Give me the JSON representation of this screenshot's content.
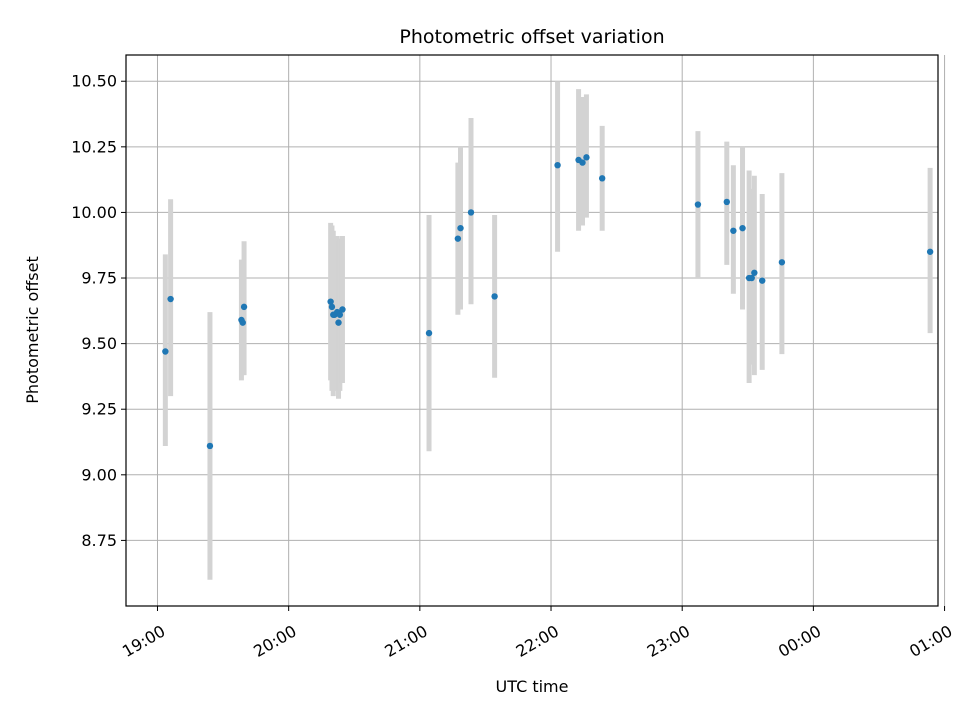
{
  "chart_data": {
    "type": "scatter",
    "title": "Photometric offset variation",
    "xlabel": "UTC time",
    "ylabel": "Photometric offset",
    "x_unit": "hours since 19:00 UTC",
    "xlim": [
      -0.24,
      5.95
    ],
    "ylim": [
      8.5,
      10.6
    ],
    "grid": true,
    "x_ticks": [
      {
        "value": 0,
        "label": "19:00"
      },
      {
        "value": 1,
        "label": "20:00"
      },
      {
        "value": 2,
        "label": "21:00"
      },
      {
        "value": 3,
        "label": "22:00"
      },
      {
        "value": 4,
        "label": "23:00"
      },
      {
        "value": 5,
        "label": "00:00"
      },
      {
        "value": 6,
        "label": "01:00"
      }
    ],
    "y_ticks": [
      {
        "value": 8.75,
        "label": "8.75"
      },
      {
        "value": 9.0,
        "label": "9.00"
      },
      {
        "value": 9.25,
        "label": "9.25"
      },
      {
        "value": 9.5,
        "label": "9.50"
      },
      {
        "value": 9.75,
        "label": "9.75"
      },
      {
        "value": 10.0,
        "label": "10.00"
      },
      {
        "value": 10.25,
        "label": "10.25"
      },
      {
        "value": 10.5,
        "label": "10.50"
      }
    ],
    "marker_color": "#1f77b4",
    "errorbar_color": "#d3d3d3",
    "points": [
      {
        "x": 0.06,
        "y": 9.47,
        "ylo": 9.11,
        "yhi": 9.84
      },
      {
        "x": 0.1,
        "y": 9.67,
        "ylo": 9.3,
        "yhi": 10.05
      },
      {
        "x": 0.4,
        "y": 9.11,
        "ylo": 8.6,
        "yhi": 9.62
      },
      {
        "x": 0.64,
        "y": 9.59,
        "ylo": 9.36,
        "yhi": 9.82
      },
      {
        "x": 0.65,
        "y": 9.58,
        "ylo": 9.38,
        "yhi": 9.77
      },
      {
        "x": 0.66,
        "y": 9.64,
        "ylo": 9.38,
        "yhi": 9.89
      },
      {
        "x": 1.32,
        "y": 9.66,
        "ylo": 9.36,
        "yhi": 9.96
      },
      {
        "x": 1.33,
        "y": 9.64,
        "ylo": 9.32,
        "yhi": 9.95
      },
      {
        "x": 1.34,
        "y": 9.61,
        "ylo": 9.3,
        "yhi": 9.93
      },
      {
        "x": 1.35,
        "y": 9.61,
        "ylo": 9.33,
        "yhi": 9.9
      },
      {
        "x": 1.37,
        "y": 9.62,
        "ylo": 9.32,
        "yhi": 9.91
      },
      {
        "x": 1.38,
        "y": 9.58,
        "ylo": 9.29,
        "yhi": 9.89
      },
      {
        "x": 1.39,
        "y": 9.61,
        "ylo": 9.32,
        "yhi": 9.9
      },
      {
        "x": 1.41,
        "y": 9.63,
        "ylo": 9.35,
        "yhi": 9.91
      },
      {
        "x": 2.07,
        "y": 9.54,
        "ylo": 9.09,
        "yhi": 9.99
      },
      {
        "x": 2.29,
        "y": 9.9,
        "ylo": 9.61,
        "yhi": 10.19
      },
      {
        "x": 2.31,
        "y": 9.94,
        "ylo": 9.63,
        "yhi": 10.25
      },
      {
        "x": 2.39,
        "y": 10.0,
        "ylo": 9.65,
        "yhi": 10.36
      },
      {
        "x": 2.57,
        "y": 9.68,
        "ylo": 9.37,
        "yhi": 9.99
      },
      {
        "x": 3.05,
        "y": 10.18,
        "ylo": 9.85,
        "yhi": 10.5
      },
      {
        "x": 3.21,
        "y": 10.2,
        "ylo": 9.93,
        "yhi": 10.47
      },
      {
        "x": 3.24,
        "y": 10.19,
        "ylo": 9.95,
        "yhi": 10.44
      },
      {
        "x": 3.27,
        "y": 10.21,
        "ylo": 9.98,
        "yhi": 10.45
      },
      {
        "x": 3.39,
        "y": 10.13,
        "ylo": 9.93,
        "yhi": 10.33
      },
      {
        "x": 4.12,
        "y": 10.03,
        "ylo": 9.75,
        "yhi": 10.31
      },
      {
        "x": 4.34,
        "y": 10.04,
        "ylo": 9.8,
        "yhi": 10.27
      },
      {
        "x": 4.39,
        "y": 9.93,
        "ylo": 9.69,
        "yhi": 10.18
      },
      {
        "x": 4.46,
        "y": 9.94,
        "ylo": 9.63,
        "yhi": 10.25
      },
      {
        "x": 4.51,
        "y": 9.75,
        "ylo": 9.35,
        "yhi": 10.16
      },
      {
        "x": 4.53,
        "y": 9.75,
        "ylo": 9.42,
        "yhi": 10.09
      },
      {
        "x": 4.55,
        "y": 9.77,
        "ylo": 9.38,
        "yhi": 10.14
      },
      {
        "x": 4.61,
        "y": 9.74,
        "ylo": 9.4,
        "yhi": 10.07
      },
      {
        "x": 4.76,
        "y": 9.81,
        "ylo": 9.46,
        "yhi": 10.15
      },
      {
        "x": 5.89,
        "y": 9.85,
        "ylo": 9.54,
        "yhi": 10.17
      }
    ]
  }
}
